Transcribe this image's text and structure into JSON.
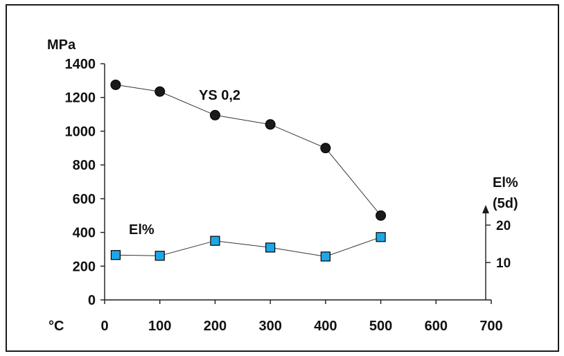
{
  "chart_data": {
    "type": "line",
    "x_unit_label": "°C",
    "y_unit_label": "MPa",
    "y2_label_line1": "El%",
    "y2_label_line2": "(5d)",
    "x_ticks": [
      "0",
      "100",
      "200",
      "300",
      "400",
      "500",
      "600",
      "700"
    ],
    "x_tick_values": [
      0,
      100,
      200,
      300,
      400,
      500,
      600,
      700
    ],
    "y_ticks": [
      "0",
      "200",
      "400",
      "600",
      "800",
      "1000",
      "1200",
      "1400"
    ],
    "y_tick_values": [
      0,
      200,
      400,
      600,
      800,
      1000,
      1200,
      1400
    ],
    "y2_ticks": [
      "10",
      "20"
    ],
    "y2_tick_values": [
      10,
      20
    ],
    "xlim": [
      0,
      700
    ],
    "ylim": [
      0,
      1400
    ],
    "y2lim": [
      0,
      30
    ],
    "grid": false,
    "series": [
      {
        "name": "YS 0,2",
        "axis": "left",
        "marker": "circle",
        "color": "#1a1a1a",
        "x": [
          20,
          100,
          200,
          300,
          400,
          500
        ],
        "y": [
          1275,
          1235,
          1095,
          1040,
          900,
          500
        ]
      },
      {
        "name": "El%",
        "axis": "right",
        "marker": "square",
        "color": "#1ea7e8",
        "x": [
          20,
          100,
          200,
          300,
          400,
          500
        ],
        "y": [
          12,
          11.8,
          15.8,
          14,
          11.6,
          16.8
        ]
      }
    ]
  },
  "colors": {
    "frame": "#1a1a1a",
    "line": "#333333",
    "square_fill": "#1ea7e8",
    "circle_fill": "#1a1a1a"
  }
}
